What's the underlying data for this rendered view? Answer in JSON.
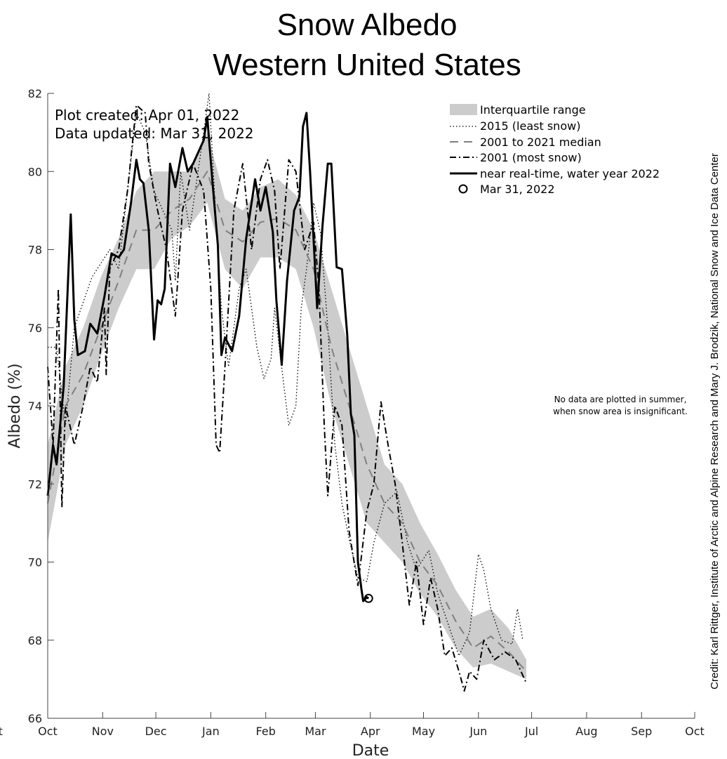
{
  "chart_data": {
    "type": "line",
    "title": "Snow Albedo",
    "subtitle": "Western United States",
    "xlabel": "Date",
    "ylabel": "Albedo (%)",
    "xlim": [
      "2021-10-01",
      "2022-10-01"
    ],
    "ylim": [
      66,
      82
    ],
    "yticks": [
      "66",
      "68",
      "70",
      "72",
      "74",
      "76",
      "78",
      "80",
      "82"
    ],
    "xticks": [
      {
        "date": "2021-10-01",
        "label": "Oct"
      },
      {
        "date": "2021-11-01",
        "label": "Nov"
      },
      {
        "date": "2021-12-01",
        "label": "Dec"
      },
      {
        "date": "2022-01-01",
        "label": "Jan"
      },
      {
        "date": "2022-02-01",
        "label": "Feb"
      },
      {
        "date": "2022-03-01",
        "label": "Mar"
      },
      {
        "date": "2022-04-01",
        "label": "Apr"
      },
      {
        "date": "2022-05-01",
        "label": "May"
      },
      {
        "date": "2022-06-01",
        "label": "Jun"
      },
      {
        "date": "2022-07-01",
        "label": "Jul"
      },
      {
        "date": "2022-08-01",
        "label": "Aug"
      },
      {
        "date": "2022-09-01",
        "label": "Sep"
      },
      {
        "date": "2022-10-01",
        "label": "Oct"
      }
    ],
    "xtick_clipped_left": "Oct",
    "grid": false,
    "legend_position": "top-right",
    "annotations": {
      "plot_created": "Plot created: Apr 01, 2022",
      "data_updated": "Data updated: Mar 31, 2022",
      "note_line1": "No data are plotted in summer,",
      "note_line2": "when snow area is insignificant.",
      "credit": "Credit: Karl Rittger, Institute of Arctic and Alpine Research and Mary J. Brodzik, National Snow and Ice Data Center"
    },
    "iqr": {
      "name": "Interquartile range",
      "color": "#cccccc",
      "points": [
        [
          "2021-10-01",
          70.5,
          73
        ],
        [
          "2021-10-11",
          73,
          75
        ],
        [
          "2021-10-21",
          74,
          76
        ],
        [
          "2021-10-31",
          75.3,
          77.3
        ],
        [
          "2021-11-10",
          76.5,
          78.3
        ],
        [
          "2021-11-20",
          77.5,
          79.5
        ],
        [
          "2021-11-30",
          77.5,
          80
        ],
        [
          "2021-12-10",
          78.3,
          80
        ],
        [
          "2021-12-20",
          78.6,
          80
        ],
        [
          "2021-12-30",
          79.2,
          81
        ],
        [
          "2022-01-09",
          77.5,
          79.3
        ],
        [
          "2022-01-19",
          77,
          79
        ],
        [
          "2022-01-29",
          77.8,
          79.6
        ],
        [
          "2022-02-08",
          77.8,
          79.8
        ],
        [
          "2022-02-18",
          77.5,
          79.4
        ],
        [
          "2022-02-28",
          76,
          78.5
        ],
        [
          "2022-03-10",
          74,
          77
        ],
        [
          "2022-03-20",
          72.5,
          75.5
        ],
        [
          "2022-03-30",
          71,
          74
        ],
        [
          "2022-04-09",
          70.5,
          72.5
        ],
        [
          "2022-04-19",
          70,
          72
        ],
        [
          "2022-04-29",
          69.2,
          71
        ],
        [
          "2022-05-09",
          68.6,
          70.2
        ],
        [
          "2022-05-19",
          67.8,
          69.3
        ],
        [
          "2022-05-29",
          67.3,
          68.6
        ],
        [
          "2022-06-08",
          67.4,
          68.8
        ],
        [
          "2022-06-18",
          67.2,
          68.3
        ],
        [
          "2022-06-28",
          67,
          67.5
        ]
      ]
    },
    "series": [
      {
        "name": "2015 (least snow)",
        "style": "dotted",
        "color": "#000000",
        "points": [
          [
            "2021-10-01",
            75.5
          ],
          [
            "2021-10-06",
            75.5
          ],
          [
            "2021-10-11",
            73.5
          ],
          [
            "2021-10-16",
            76
          ],
          [
            "2021-10-26",
            77.3
          ],
          [
            "2021-11-05",
            78
          ],
          [
            "2021-11-10",
            77.5
          ],
          [
            "2021-11-15",
            79.5
          ],
          [
            "2021-11-20",
            81.5
          ],
          [
            "2021-11-25",
            81
          ],
          [
            "2021-11-30",
            79.5
          ],
          [
            "2021-12-05",
            79
          ],
          [
            "2021-12-10",
            78.5
          ],
          [
            "2021-12-12",
            77.2
          ],
          [
            "2021-12-15",
            80
          ],
          [
            "2021-12-20",
            78.5
          ],
          [
            "2021-12-28",
            81
          ],
          [
            "2021-12-31",
            82
          ],
          [
            "2022-01-04",
            78.7
          ],
          [
            "2022-01-07",
            76.5
          ],
          [
            "2022-01-11",
            75
          ],
          [
            "2022-01-17",
            77
          ],
          [
            "2022-01-21",
            77.5
          ],
          [
            "2022-01-27",
            75.5
          ],
          [
            "2022-01-31",
            74.7
          ],
          [
            "2022-02-04",
            75.2
          ],
          [
            "2022-02-06",
            76.5
          ],
          [
            "2022-02-11",
            74.6
          ],
          [
            "2022-02-14",
            73.5
          ],
          [
            "2022-02-18",
            74
          ],
          [
            "2022-02-21",
            76.5
          ],
          [
            "2022-02-24",
            77.5
          ],
          [
            "2022-02-28",
            79.2
          ],
          [
            "2022-03-04",
            78.4
          ],
          [
            "2022-03-08",
            76
          ],
          [
            "2022-03-12",
            73
          ],
          [
            "2022-03-16",
            71.5
          ],
          [
            "2022-03-20",
            70.6
          ],
          [
            "2022-03-25",
            69.6
          ],
          [
            "2022-03-30",
            69.5
          ],
          [
            "2022-04-03",
            70.5
          ],
          [
            "2022-04-09",
            71.5
          ],
          [
            "2022-04-16",
            71.8
          ],
          [
            "2022-04-22",
            70.5
          ],
          [
            "2022-04-27",
            69.8
          ],
          [
            "2022-05-04",
            70.3
          ],
          [
            "2022-05-09",
            69.2
          ],
          [
            "2022-05-15",
            68.4
          ],
          [
            "2022-05-21",
            67.6
          ],
          [
            "2022-05-27",
            68.2
          ],
          [
            "2022-06-01",
            70.2
          ],
          [
            "2022-06-04",
            69.8
          ],
          [
            "2022-06-08",
            68.8
          ],
          [
            "2022-06-14",
            68
          ],
          [
            "2022-06-20",
            67.9
          ],
          [
            "2022-06-23",
            68.8
          ],
          [
            "2022-06-26",
            68
          ]
        ]
      },
      {
        "name": "2001 to 2021 median",
        "style": "dashed",
        "color": "#808080",
        "points": [
          [
            "2021-10-01",
            71.5
          ],
          [
            "2021-10-11",
            74
          ],
          [
            "2021-10-21",
            74.8
          ],
          [
            "2021-10-31",
            76
          ],
          [
            "2021-11-10",
            77.2
          ],
          [
            "2021-11-20",
            78.5
          ],
          [
            "2021-11-30",
            78.5
          ],
          [
            "2021-12-10",
            79
          ],
          [
            "2021-12-20",
            79.3
          ],
          [
            "2021-12-30",
            80
          ],
          [
            "2022-01-09",
            78.5
          ],
          [
            "2022-01-19",
            78.2
          ],
          [
            "2022-01-29",
            78.7
          ],
          [
            "2022-02-08",
            78.8
          ],
          [
            "2022-02-18",
            78.5
          ],
          [
            "2022-02-28",
            77.5
          ],
          [
            "2022-03-10",
            75.5
          ],
          [
            "2022-03-20",
            74
          ],
          [
            "2022-03-30",
            72.5
          ],
          [
            "2022-04-09",
            71.5
          ],
          [
            "2022-04-19",
            71
          ],
          [
            "2022-04-29",
            70
          ],
          [
            "2022-05-09",
            69.4
          ],
          [
            "2022-05-19",
            68.5
          ],
          [
            "2022-05-29",
            67.8
          ],
          [
            "2022-06-08",
            68.1
          ],
          [
            "2022-06-18",
            67.7
          ],
          [
            "2022-06-28",
            67.2
          ]
        ]
      },
      {
        "name": "2001 (most snow)",
        "style": "dashdot",
        "color": "#000000",
        "points": [
          [
            "2021-10-01",
            75
          ],
          [
            "2021-10-04",
            73
          ],
          [
            "2021-10-07",
            77
          ],
          [
            "2021-10-09",
            71.4
          ],
          [
            "2021-10-11",
            74
          ],
          [
            "2021-10-16",
            73
          ],
          [
            "2021-10-21",
            74
          ],
          [
            "2021-10-25",
            75
          ],
          [
            "2021-10-29",
            74.6
          ],
          [
            "2021-11-02",
            76.5
          ],
          [
            "2021-11-03",
            74.8
          ],
          [
            "2021-11-05",
            77.5
          ],
          [
            "2021-11-10",
            78
          ],
          [
            "2021-11-15",
            79.5
          ],
          [
            "2021-11-20",
            81.7
          ],
          [
            "2021-11-25",
            81.5
          ],
          [
            "2021-11-27",
            80.2
          ],
          [
            "2021-12-02",
            79
          ],
          [
            "2021-12-07",
            78
          ],
          [
            "2021-12-12",
            76.3
          ],
          [
            "2021-12-16",
            79
          ],
          [
            "2021-12-22",
            80.2
          ],
          [
            "2021-12-28",
            79.5
          ],
          [
            "2022-01-01",
            77
          ],
          [
            "2022-01-04",
            73
          ],
          [
            "2022-01-06",
            72.8
          ],
          [
            "2022-01-09",
            75
          ],
          [
            "2022-01-14",
            79
          ],
          [
            "2022-01-19",
            80.2
          ],
          [
            "2022-01-24",
            78
          ],
          [
            "2022-01-29",
            79.8
          ],
          [
            "2022-02-02",
            80.3
          ],
          [
            "2022-02-06",
            79.5
          ],
          [
            "2022-02-09",
            77.5
          ],
          [
            "2022-02-14",
            80.3
          ],
          [
            "2022-02-18",
            80
          ],
          [
            "2022-02-23",
            78
          ],
          [
            "2022-02-28",
            78.7
          ],
          [
            "2022-03-03",
            77
          ],
          [
            "2022-03-06",
            73.5
          ],
          [
            "2022-03-08",
            71.7
          ],
          [
            "2022-03-12",
            74
          ],
          [
            "2022-03-16",
            73.5
          ],
          [
            "2022-03-20",
            70.8
          ],
          [
            "2022-03-25",
            69.4
          ],
          [
            "2022-03-30",
            71.3
          ],
          [
            "2022-04-03",
            72
          ],
          [
            "2022-04-07",
            74.1
          ],
          [
            "2022-04-11",
            73
          ],
          [
            "2022-04-15",
            72
          ],
          [
            "2022-04-19",
            70.5
          ],
          [
            "2022-04-23",
            68.9
          ],
          [
            "2022-04-27",
            70
          ],
          [
            "2022-05-01",
            68.4
          ],
          [
            "2022-05-05",
            69.6
          ],
          [
            "2022-05-09",
            68.8
          ],
          [
            "2022-05-13",
            67.6
          ],
          [
            "2022-05-17",
            67.8
          ],
          [
            "2022-05-21",
            67.2
          ],
          [
            "2022-05-24",
            66.7
          ],
          [
            "2022-05-27",
            67.2
          ],
          [
            "2022-05-31",
            67
          ],
          [
            "2022-06-04",
            68
          ],
          [
            "2022-06-10",
            67.5
          ],
          [
            "2022-06-16",
            67.7
          ],
          [
            "2022-06-22",
            67.5
          ],
          [
            "2022-06-28",
            66.9
          ]
        ]
      },
      {
        "name": "near real-time, water year 2022",
        "style": "solid",
        "color": "#000000",
        "points": [
          [
            "2021-10-01",
            71.7
          ],
          [
            "2021-10-04",
            73
          ],
          [
            "2021-10-06",
            72.5
          ],
          [
            "2021-10-10",
            74.5
          ],
          [
            "2021-10-14",
            78.9
          ],
          [
            "2021-10-16",
            76.2
          ],
          [
            "2021-10-18",
            75.3
          ],
          [
            "2021-10-22",
            75.4
          ],
          [
            "2021-10-25",
            76.1
          ],
          [
            "2021-10-29",
            75.85
          ],
          [
            "2021-11-02",
            76.8
          ],
          [
            "2021-11-06",
            77.9
          ],
          [
            "2021-11-10",
            77.8
          ],
          [
            "2021-11-13",
            78
          ],
          [
            "2021-11-17",
            79.2
          ],
          [
            "2021-11-20",
            80.3
          ],
          [
            "2021-11-22",
            79.8
          ],
          [
            "2021-11-24",
            79.7
          ],
          [
            "2021-11-27",
            78.5
          ],
          [
            "2021-11-30",
            75.7
          ],
          [
            "2021-12-02",
            76.7
          ],
          [
            "2021-12-04",
            76.6
          ],
          [
            "2021-12-06",
            77
          ],
          [
            "2021-12-09",
            80.2
          ],
          [
            "2021-12-12",
            79.6
          ],
          [
            "2021-12-16",
            80.6
          ],
          [
            "2021-12-19",
            80
          ],
          [
            "2021-12-22",
            80.2
          ],
          [
            "2021-12-25",
            80.5
          ],
          [
            "2021-12-28",
            80.8
          ],
          [
            "2021-12-30",
            81.4
          ],
          [
            "2022-01-02",
            79.7
          ],
          [
            "2022-01-05",
            78.1
          ],
          [
            "2022-01-07",
            75.3
          ],
          [
            "2022-01-09",
            75.75
          ],
          [
            "2022-01-13",
            75.4
          ],
          [
            "2022-01-17",
            76.3
          ],
          [
            "2022-01-21",
            78.3
          ],
          [
            "2022-01-26",
            79.8
          ],
          [
            "2022-01-29",
            79
          ],
          [
            "2022-02-01",
            79.6
          ],
          [
            "2022-02-05",
            78.45
          ],
          [
            "2022-02-07",
            76.7
          ],
          [
            "2022-02-10",
            75.05
          ],
          [
            "2022-02-13",
            77.2
          ],
          [
            "2022-02-17",
            79
          ],
          [
            "2022-02-20",
            79.35
          ],
          [
            "2022-02-22",
            81.15
          ],
          [
            "2022-02-24",
            81.5
          ],
          [
            "2022-02-26",
            80
          ],
          [
            "2022-03-02",
            76.5
          ],
          [
            "2022-03-05",
            78.6
          ],
          [
            "2022-03-08",
            80.2
          ],
          [
            "2022-03-10",
            80.2
          ],
          [
            "2022-03-13",
            77.55
          ],
          [
            "2022-03-16",
            77.5
          ],
          [
            "2022-03-19",
            75.8
          ],
          [
            "2022-03-21",
            73.8
          ],
          [
            "2022-03-23",
            73.25
          ],
          [
            "2022-03-25",
            70
          ],
          [
            "2022-03-27",
            69.3
          ],
          [
            "2022-03-28",
            69
          ],
          [
            "2022-03-30",
            69.1
          ],
          [
            "2022-03-31",
            69.07
          ]
        ]
      }
    ],
    "marker": {
      "name": "Mar 31, 2022",
      "date": "2022-03-31",
      "value": 69.07
    }
  }
}
